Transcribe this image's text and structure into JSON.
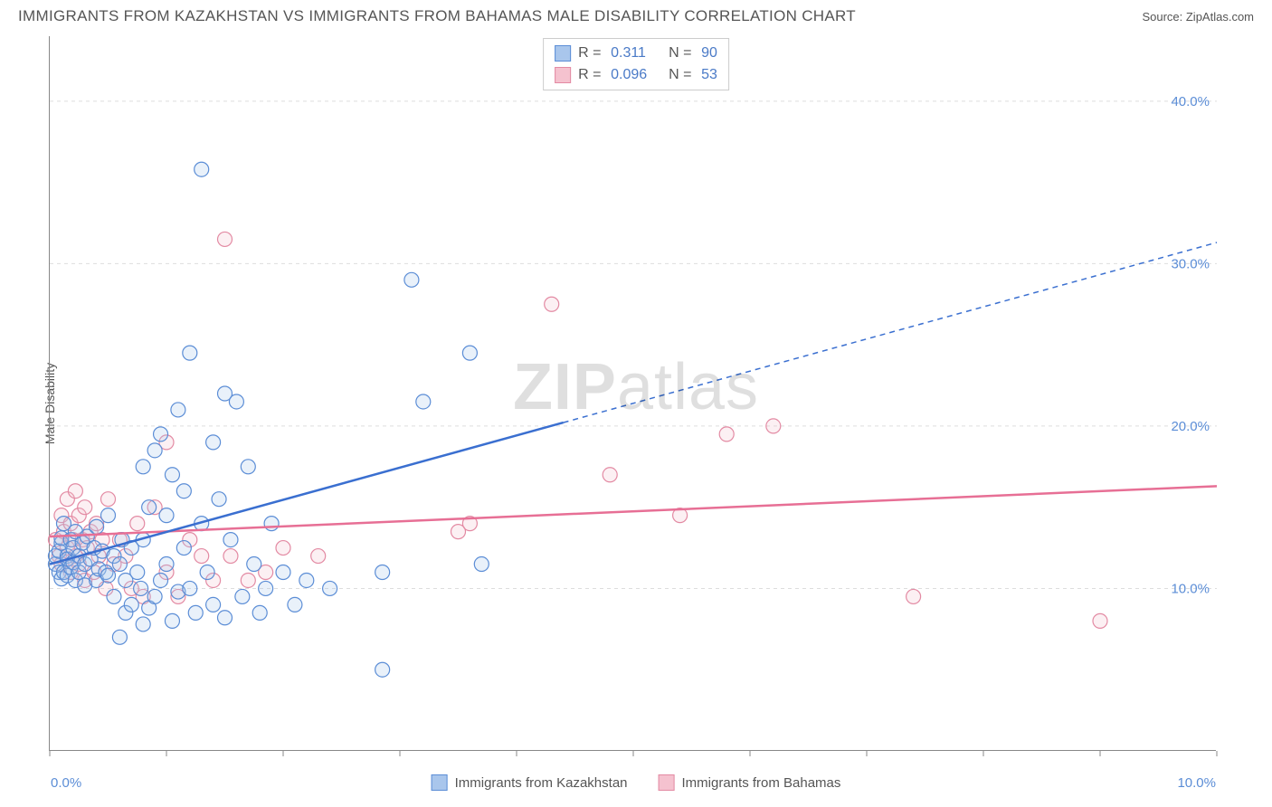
{
  "header": {
    "title": "IMMIGRANTS FROM KAZAKHSTAN VS IMMIGRANTS FROM BAHAMAS MALE DISABILITY CORRELATION CHART",
    "source": "Source: ZipAtlas.com"
  },
  "ylabel": "Male Disability",
  "watermark": {
    "bold": "ZIP",
    "rest": "atlas"
  },
  "chart": {
    "type": "scatter",
    "background_color": "#ffffff",
    "grid_color": "#dddddd",
    "axis_color": "#888888",
    "xlim": [
      0,
      10
    ],
    "ylim": [
      0,
      44
    ],
    "x_ticks": [
      0,
      1,
      2,
      3,
      4,
      5,
      6,
      7,
      8,
      9,
      10
    ],
    "x_tick_labels": {
      "0": "0.0%",
      "10": "10.0%"
    },
    "y_gridlines": [
      10,
      20,
      30,
      40
    ],
    "y_tick_labels": {
      "10": "10.0%",
      "20": "20.0%",
      "30": "30.0%",
      "40": "40.0%"
    },
    "label_color": "#5b8dd6",
    "ylabel_color": "#555555",
    "label_fontsize": 15,
    "ylabel_fontsize": 14,
    "marker_radius": 8,
    "marker_stroke_width": 1.2,
    "marker_fill_opacity": 0.25,
    "trend_line_width": 2.5,
    "trend_dash": "6,5"
  },
  "series": {
    "kazakhstan": {
      "label": "Immigrants from Kazakhstan",
      "color_fill": "#a9c6ec",
      "color_stroke": "#5b8dd6",
      "trend_color": "#3a6fd0",
      "r": "0.311",
      "n": "90",
      "trend": {
        "x1": 0,
        "y1": 11.5,
        "x2": 10,
        "y2": 31.3,
        "solid_until_x": 4.4
      },
      "points": [
        [
          0.05,
          11.5
        ],
        [
          0.05,
          12.0
        ],
        [
          0.08,
          11.0
        ],
        [
          0.08,
          12.3
        ],
        [
          0.1,
          12.8
        ],
        [
          0.1,
          10.6
        ],
        [
          0.1,
          13.1
        ],
        [
          0.12,
          11.0
        ],
        [
          0.12,
          14.0
        ],
        [
          0.15,
          12.0
        ],
        [
          0.15,
          10.8
        ],
        [
          0.15,
          11.8
        ],
        [
          0.18,
          13.0
        ],
        [
          0.18,
          11.3
        ],
        [
          0.2,
          11.6
        ],
        [
          0.2,
          12.5
        ],
        [
          0.22,
          10.5
        ],
        [
          0.22,
          13.5
        ],
        [
          0.25,
          12.0
        ],
        [
          0.25,
          11.0
        ],
        [
          0.28,
          12.8
        ],
        [
          0.3,
          11.5
        ],
        [
          0.3,
          10.2
        ],
        [
          0.32,
          13.2
        ],
        [
          0.35,
          11.8
        ],
        [
          0.38,
          12.5
        ],
        [
          0.4,
          10.5
        ],
        [
          0.4,
          13.8
        ],
        [
          0.42,
          11.2
        ],
        [
          0.45,
          12.3
        ],
        [
          0.48,
          11.0
        ],
        [
          0.5,
          10.8
        ],
        [
          0.5,
          14.5
        ],
        [
          0.55,
          12.0
        ],
        [
          0.55,
          9.5
        ],
        [
          0.6,
          11.5
        ],
        [
          0.6,
          7.0
        ],
        [
          0.62,
          13.0
        ],
        [
          0.65,
          10.5
        ],
        [
          0.65,
          8.5
        ],
        [
          0.7,
          12.5
        ],
        [
          0.7,
          9.0
        ],
        [
          0.75,
          11.0
        ],
        [
          0.78,
          10.0
        ],
        [
          0.8,
          13.0
        ],
        [
          0.8,
          17.5
        ],
        [
          0.8,
          7.8
        ],
        [
          0.85,
          8.8
        ],
        [
          0.85,
          15.0
        ],
        [
          0.9,
          9.5
        ],
        [
          0.9,
          18.5
        ],
        [
          0.95,
          10.5
        ],
        [
          0.95,
          19.5
        ],
        [
          1.0,
          11.5
        ],
        [
          1.0,
          14.5
        ],
        [
          1.05,
          8.0
        ],
        [
          1.05,
          17.0
        ],
        [
          1.1,
          21.0
        ],
        [
          1.1,
          9.8
        ],
        [
          1.15,
          16.0
        ],
        [
          1.15,
          12.5
        ],
        [
          1.2,
          10.0
        ],
        [
          1.2,
          24.5
        ],
        [
          1.25,
          8.5
        ],
        [
          1.3,
          14.0
        ],
        [
          1.3,
          35.8
        ],
        [
          1.35,
          11.0
        ],
        [
          1.4,
          19.0
        ],
        [
          1.4,
          9.0
        ],
        [
          1.45,
          15.5
        ],
        [
          1.5,
          22.0
        ],
        [
          1.5,
          8.2
        ],
        [
          1.55,
          13.0
        ],
        [
          1.6,
          21.5
        ],
        [
          1.65,
          9.5
        ],
        [
          1.7,
          17.5
        ],
        [
          1.75,
          11.5
        ],
        [
          1.8,
          8.5
        ],
        [
          1.85,
          10.0
        ],
        [
          1.9,
          14.0
        ],
        [
          2.0,
          11.0
        ],
        [
          2.1,
          9.0
        ],
        [
          2.2,
          10.5
        ],
        [
          2.4,
          10.0
        ],
        [
          2.85,
          5.0
        ],
        [
          2.85,
          11.0
        ],
        [
          3.1,
          29.0
        ],
        [
          3.2,
          21.5
        ],
        [
          3.6,
          24.5
        ],
        [
          3.7,
          11.5
        ]
      ]
    },
    "bahamas": {
      "label": "Immigrants from Bahamas",
      "color_fill": "#f5c2cf",
      "color_stroke": "#e38aa3",
      "trend_color": "#e76f95",
      "r": "0.096",
      "n": "53",
      "trend": {
        "x1": 0,
        "y1": 13.2,
        "x2": 10,
        "y2": 16.3,
        "solid_until_x": 10
      },
      "points": [
        [
          0.05,
          13.0
        ],
        [
          0.08,
          12.0
        ],
        [
          0.1,
          14.5
        ],
        [
          0.1,
          11.5
        ],
        [
          0.12,
          13.5
        ],
        [
          0.15,
          12.5
        ],
        [
          0.15,
          15.5
        ],
        [
          0.18,
          11.0
        ],
        [
          0.18,
          14.0
        ],
        [
          0.2,
          13.0
        ],
        [
          0.22,
          12.0
        ],
        [
          0.22,
          16.0
        ],
        [
          0.25,
          11.5
        ],
        [
          0.25,
          14.5
        ],
        [
          0.28,
          13.0
        ],
        [
          0.3,
          10.5
        ],
        [
          0.3,
          15.0
        ],
        [
          0.32,
          12.5
        ],
        [
          0.35,
          13.5
        ],
        [
          0.38,
          11.0
        ],
        [
          0.4,
          14.0
        ],
        [
          0.42,
          12.0
        ],
        [
          0.45,
          13.0
        ],
        [
          0.48,
          10.0
        ],
        [
          0.5,
          15.5
        ],
        [
          0.55,
          11.5
        ],
        [
          0.6,
          13.0
        ],
        [
          0.65,
          12.0
        ],
        [
          0.7,
          10.0
        ],
        [
          0.75,
          14.0
        ],
        [
          0.8,
          9.5
        ],
        [
          0.9,
          15.0
        ],
        [
          1.0,
          19.0
        ],
        [
          1.0,
          11.0
        ],
        [
          1.1,
          9.5
        ],
        [
          1.2,
          13.0
        ],
        [
          1.3,
          12.0
        ],
        [
          1.4,
          10.5
        ],
        [
          1.5,
          31.5
        ],
        [
          1.55,
          12.0
        ],
        [
          1.7,
          10.5
        ],
        [
          1.85,
          11.0
        ],
        [
          2.0,
          12.5
        ],
        [
          2.3,
          12.0
        ],
        [
          3.5,
          13.5
        ],
        [
          3.6,
          14.0
        ],
        [
          4.3,
          27.5
        ],
        [
          4.8,
          17.0
        ],
        [
          5.4,
          14.5
        ],
        [
          5.8,
          19.5
        ],
        [
          6.2,
          20.0
        ],
        [
          7.4,
          9.5
        ],
        [
          9.0,
          8.0
        ]
      ]
    }
  },
  "stats_box": {
    "r_label": "R =",
    "n_label": "N ="
  },
  "bottom_legend": {
    "item1": "Immigrants from Kazakhstan",
    "item2": "Immigrants from Bahamas"
  }
}
